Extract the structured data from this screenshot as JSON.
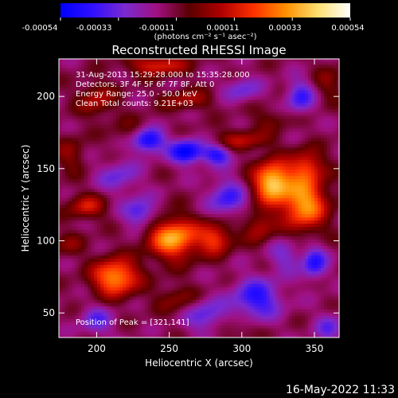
{
  "colorbar": {
    "ticks": [
      "-0.00054",
      "-0.00033",
      "-0.00011",
      "0.00011",
      "0.00033",
      "0.00054"
    ],
    "unit_label": "(photons cm⁻² s⁻¹ asec⁻²)",
    "stops": [
      "#0000ff",
      "#3010ff",
      "#7a2ad0",
      "#a01080",
      "#5a0000",
      "#b00000",
      "#ff3000",
      "#ff9000",
      "#ffe070",
      "#ffffff"
    ]
  },
  "footer": {
    "timestamp": "16-May-2022 11:33"
  },
  "chart_data": {
    "type": "heatmap",
    "title": "Reconstructed RHESSI Image",
    "xlabel": "Heliocentric X (arcsec)",
    "ylabel": "Heliocentric Y (arcsec)",
    "xlim": [
      174,
      367
    ],
    "ylim": [
      33,
      226
    ],
    "x_ticks": [
      200,
      250,
      300,
      350
    ],
    "y_ticks": [
      50,
      100,
      150,
      200
    ],
    "annotations": [
      "31-Aug-2013 15:29:28.000 to 15:35:28.000",
      "Detectors: 3F 4F 5F 6F 7F 8F, Att 0",
      "Energy Range: 25.0 - 50.0 keV",
      "Clean    Total counts: 9.21E+03"
    ],
    "peak_label": "Position of Peak = [321,141]",
    "sources": [
      {
        "x": 213,
        "y": 75,
        "amp": 0.00046,
        "sx": 11,
        "sy": 9
      },
      {
        "x": 253,
        "y": 102,
        "amp": 0.00048,
        "sx": 12,
        "sy": 10
      },
      {
        "x": 282,
        "y": 102,
        "amp": 0.0003,
        "sx": 8,
        "sy": 8
      },
      {
        "x": 321,
        "y": 141,
        "amp": 0.00054,
        "sx": 9,
        "sy": 10
      },
      {
        "x": 343,
        "y": 126,
        "amp": 0.00046,
        "sx": 11,
        "sy": 13
      },
      {
        "x": 345,
        "y": 152,
        "amp": 0.00028,
        "sx": 8,
        "sy": 8
      },
      {
        "x": 312,
        "y": 110,
        "amp": 0.0002,
        "sx": 7,
        "sy": 8
      },
      {
        "x": 193,
        "y": 124,
        "amp": 0.00024,
        "sx": 9,
        "sy": 6
      },
      {
        "x": 200,
        "y": 198,
        "amp": 0.0002,
        "sx": 9,
        "sy": 8
      },
      {
        "x": 242,
        "y": 222,
        "amp": 0.00028,
        "sx": 14,
        "sy": 5
      },
      {
        "x": 262,
        "y": 198,
        "amp": 0.00018,
        "sx": 12,
        "sy": 5
      },
      {
        "x": 300,
        "y": 170,
        "amp": 0.0002,
        "sx": 13,
        "sy": 5
      },
      {
        "x": 225,
        "y": 175,
        "amp": 0.00012,
        "sx": 10,
        "sy": 7
      },
      {
        "x": 182,
        "y": 160,
        "amp": 0.00014,
        "sx": 7,
        "sy": 9
      },
      {
        "x": 180,
        "y": 98,
        "amp": 0.00012,
        "sx": 8,
        "sy": 6
      },
      {
        "x": 360,
        "y": 210,
        "amp": 0.00012,
        "sx": 7,
        "sy": 9
      },
      {
        "x": 255,
        "y": 60,
        "amp": 0.00014,
        "sx": 10,
        "sy": 7
      },
      {
        "x": 295,
        "y": 40,
        "amp": 0.0001,
        "sx": 10,
        "sy": 6
      },
      {
        "x": 320,
        "y": 185,
        "amp": 0.0001,
        "sx": 10,
        "sy": 6
      },
      {
        "x": 235,
        "y": 170,
        "amp": -0.00042,
        "sx": 8,
        "sy": 6
      },
      {
        "x": 262,
        "y": 162,
        "amp": -0.0004,
        "sx": 8,
        "sy": 6
      },
      {
        "x": 283,
        "y": 160,
        "amp": -0.0003,
        "sx": 7,
        "sy": 5
      },
      {
        "x": 230,
        "y": 120,
        "amp": -0.00026,
        "sx": 8,
        "sy": 7
      },
      {
        "x": 290,
        "y": 130,
        "amp": -0.00026,
        "sx": 9,
        "sy": 9
      },
      {
        "x": 350,
        "y": 85,
        "amp": -0.0003,
        "sx": 6,
        "sy": 8
      },
      {
        "x": 310,
        "y": 60,
        "amp": -0.0003,
        "sx": 12,
        "sy": 10
      },
      {
        "x": 340,
        "y": 200,
        "amp": -0.00026,
        "sx": 7,
        "sy": 8
      },
      {
        "x": 275,
        "y": 48,
        "amp": -0.00022,
        "sx": 10,
        "sy": 8
      },
      {
        "x": 200,
        "y": 45,
        "amp": -0.0002,
        "sx": 8,
        "sy": 7
      },
      {
        "x": 215,
        "y": 145,
        "amp": -0.00018,
        "sx": 10,
        "sy": 8
      },
      {
        "x": 300,
        "y": 205,
        "amp": -0.00018,
        "sx": 9,
        "sy": 6
      },
      {
        "x": 360,
        "y": 40,
        "amp": -0.00018,
        "sx": 7,
        "sy": 7
      },
      {
        "x": 330,
        "y": 90,
        "amp": -0.00016,
        "sx": 8,
        "sy": 8
      }
    ]
  }
}
